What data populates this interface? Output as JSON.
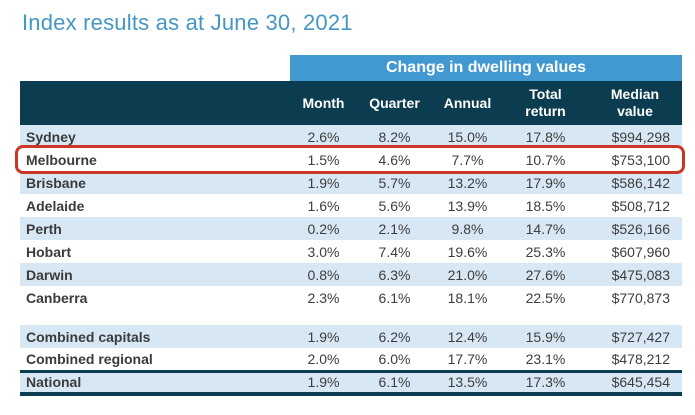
{
  "page": {
    "title": "Index results as at June 30, 2021"
  },
  "table": {
    "banner": "Change in dwelling values",
    "columns": [
      "Month",
      "Quarter",
      "Annual",
      "Total return",
      "Median value"
    ],
    "rows": [
      {
        "name": "Sydney",
        "values": [
          "2.6%",
          "8.2%",
          "15.0%",
          "17.8%",
          "$994,298"
        ],
        "striped": true
      },
      {
        "name": "Melbourne",
        "values": [
          "1.5%",
          "4.6%",
          "7.7%",
          "10.7%",
          "$753,100"
        ],
        "highlighted": true
      },
      {
        "name": "Brisbane",
        "values": [
          "1.9%",
          "5.7%",
          "13.2%",
          "17.9%",
          "$586,142"
        ],
        "striped": true
      },
      {
        "name": "Adelaide",
        "values": [
          "1.6%",
          "5.6%",
          "13.9%",
          "18.5%",
          "$508,712"
        ]
      },
      {
        "name": "Perth",
        "values": [
          "0.2%",
          "2.1%",
          "9.8%",
          "14.7%",
          "$526,166"
        ],
        "striped": true
      },
      {
        "name": "Hobart",
        "values": [
          "3.0%",
          "7.4%",
          "19.6%",
          "25.3%",
          "$607,960"
        ]
      },
      {
        "name": "Darwin",
        "values": [
          "0.8%",
          "6.3%",
          "21.0%",
          "27.6%",
          "$475,083"
        ],
        "striped": true
      },
      {
        "name": "Canberra",
        "values": [
          "2.3%",
          "6.1%",
          "18.1%",
          "22.5%",
          "$770,873"
        ]
      },
      {
        "spacer": true
      },
      {
        "name": "Combined capitals",
        "values": [
          "1.9%",
          "6.2%",
          "12.4%",
          "15.9%",
          "$727,427"
        ],
        "striped": true
      },
      {
        "name": "Combined regional",
        "values": [
          "2.0%",
          "6.0%",
          "17.7%",
          "23.1%",
          "$478,212"
        ]
      },
      {
        "name": "National",
        "values": [
          "1.9%",
          "6.1%",
          "13.5%",
          "17.3%",
          "$645,454"
        ],
        "striped": true,
        "emphasis": true
      }
    ]
  },
  "colors": {
    "title_text": "#4596c5",
    "banner_bg": "#4299d2",
    "header_bg": "#0b3c50",
    "stripe_bg": "#d7e8f4",
    "highlight_border": "#cb3727",
    "body_text": "#3d3d3d"
  }
}
